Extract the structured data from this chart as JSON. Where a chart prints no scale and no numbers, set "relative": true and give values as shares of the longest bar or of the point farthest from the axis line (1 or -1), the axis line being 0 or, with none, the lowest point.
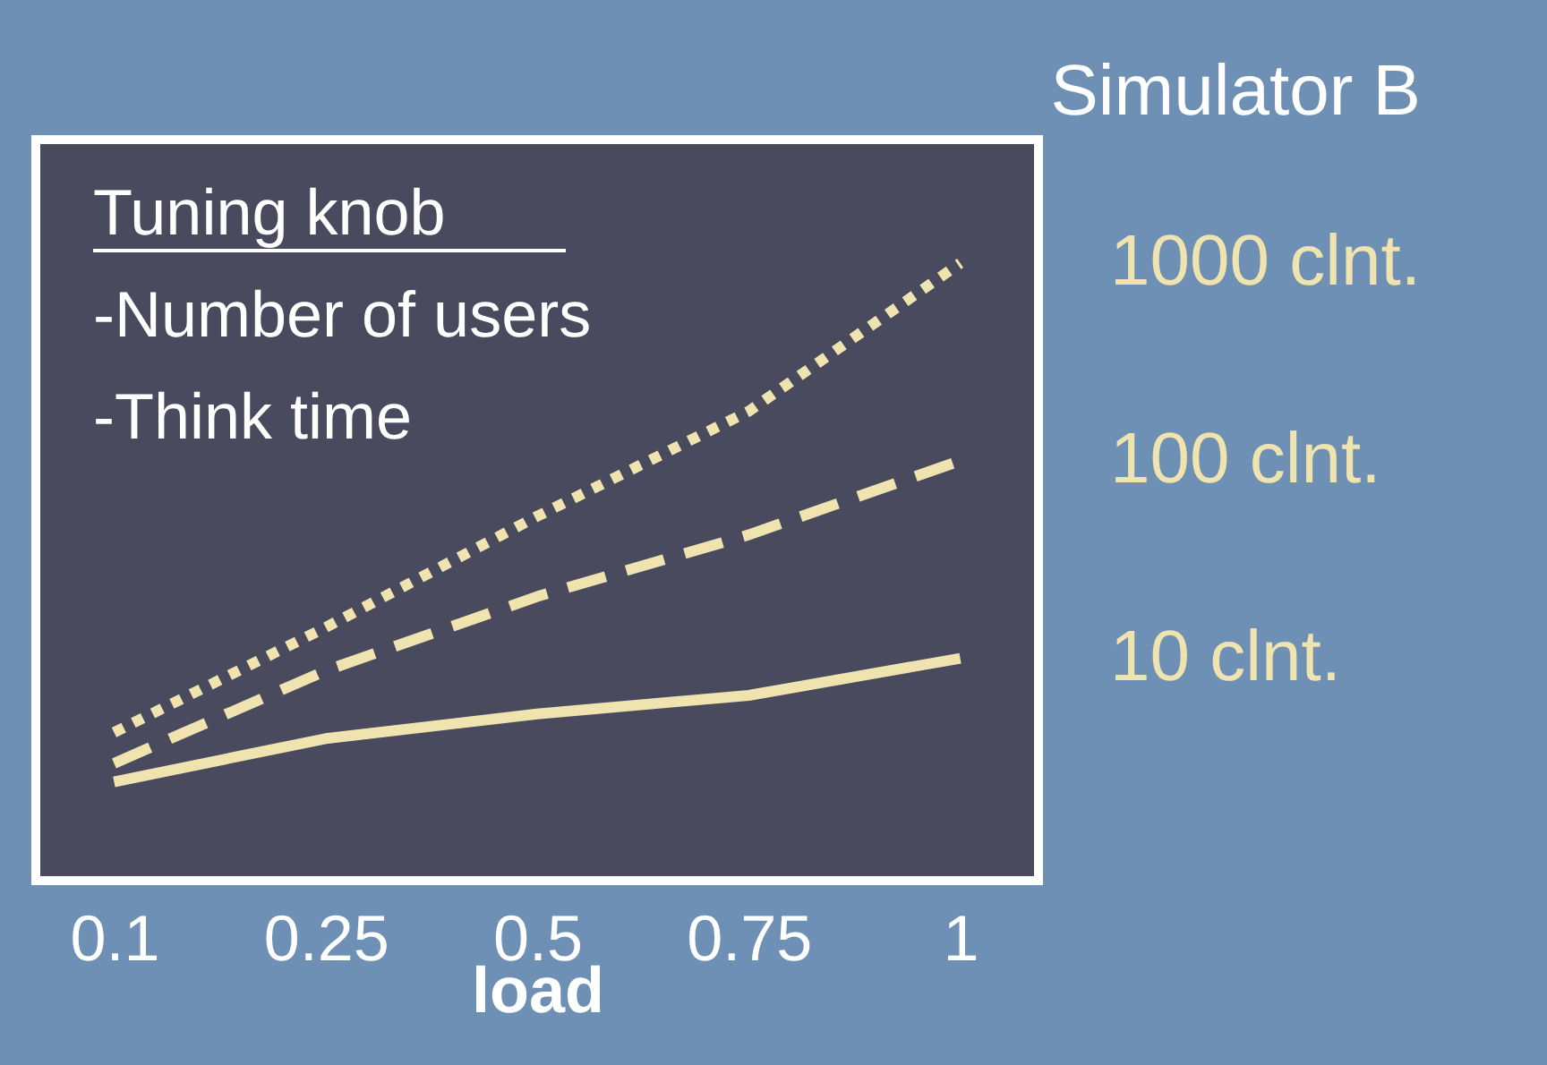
{
  "chart_data": {
    "type": "line",
    "title": "Simulator B",
    "xlabel": "load",
    "categories": [
      "0.1",
      "0.25",
      "0.5",
      "0.75",
      "1"
    ],
    "relative": true,
    "legend": false,
    "grid": false,
    "annotations": [
      "Tuning knob",
      "-Number of users",
      "-Think time"
    ],
    "series": [
      {
        "name": "1000 clnt.",
        "color": "#efe4b0",
        "line_style": "dotted",
        "values": [
          0.24,
          0.41,
          0.59,
          0.76,
          1.0
        ]
      },
      {
        "name": "100 clnt.",
        "color": "#efe4b0",
        "line_style": "dashed",
        "values": [
          0.19,
          0.34,
          0.46,
          0.56,
          0.68
        ]
      },
      {
        "name": "10 clnt.",
        "color": "#efe4b0",
        "line_style": "solid",
        "values": [
          0.16,
          0.23,
          0.27,
          0.3,
          0.36
        ]
      }
    ]
  }
}
